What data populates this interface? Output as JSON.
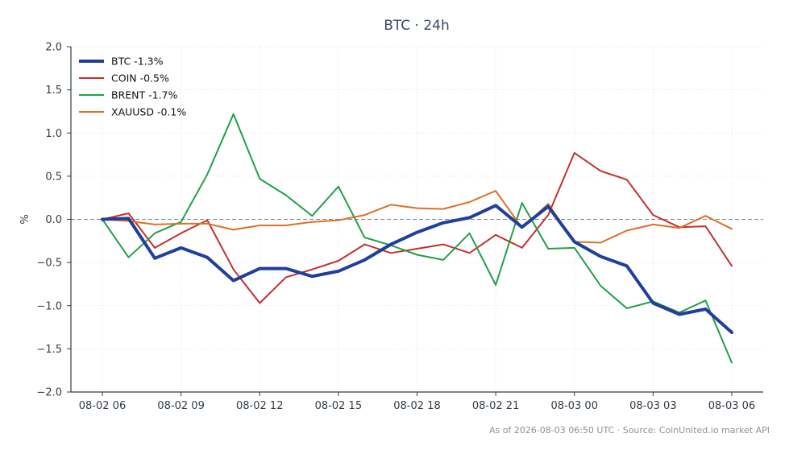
{
  "chart_data": {
    "type": "line",
    "title": "BTC · 24h",
    "xlabel": "",
    "ylabel": "%",
    "ylim": [
      -2.0,
      2.0
    ],
    "yticks": [
      "2.0",
      "1.5",
      "1.0",
      "0.5",
      "0.0",
      "−0.5",
      "−1.0",
      "−1.5",
      "−2.0"
    ],
    "ytick_values": [
      2.0,
      1.5,
      1.0,
      0.5,
      0.0,
      -0.5,
      -1.0,
      -1.5,
      -2.0
    ],
    "xticks": [
      "08-02 06",
      "08-02 09",
      "08-02 12",
      "08-02 15",
      "08-02 18",
      "08-02 21",
      "08-03 00",
      "08-03 03",
      "08-03 06"
    ],
    "xtick_positions": [
      0,
      3,
      6,
      9,
      12,
      15,
      18,
      21,
      24
    ],
    "x_hours": [
      0,
      1,
      2,
      3,
      4,
      5,
      6,
      7,
      8,
      9,
      10,
      11,
      12,
      13,
      14,
      15,
      16,
      17,
      18,
      19,
      20,
      21,
      22,
      23,
      24
    ],
    "baseline": 0.0,
    "grid": true,
    "legend_position": "top-left",
    "series": [
      {
        "name": "BTC -1.3%",
        "color": "#1f3f9b",
        "width": 4,
        "values": [
          0.0,
          0.01,
          -0.45,
          -0.33,
          -0.44,
          -0.71,
          -0.57,
          -0.57,
          -0.66,
          -0.6,
          -0.47,
          -0.29,
          -0.15,
          -0.04,
          0.02,
          0.16,
          -0.09,
          0.15,
          -0.26,
          -0.43,
          -0.54,
          -0.97,
          -1.1,
          -1.04,
          -1.31
        ]
      },
      {
        "name": "COIN -0.5%",
        "color": "#c62f2f",
        "width": 2,
        "values": [
          0.0,
          0.07,
          -0.33,
          -0.16,
          -0.01,
          -0.58,
          -0.97,
          -0.67,
          -0.58,
          -0.48,
          -0.29,
          -0.39,
          -0.34,
          -0.29,
          -0.39,
          -0.18,
          -0.33,
          0.05,
          0.77,
          0.56,
          0.46,
          0.05,
          -0.09,
          -0.08,
          -0.54
        ]
      },
      {
        "name": "BRENT -1.7%",
        "color": "#22a04a",
        "width": 2,
        "values": [
          0.0,
          -0.44,
          -0.16,
          -0.03,
          0.52,
          1.22,
          0.47,
          0.28,
          0.04,
          0.38,
          -0.21,
          -0.3,
          -0.41,
          -0.47,
          -0.16,
          -0.76,
          0.19,
          -0.34,
          -0.33,
          -0.77,
          -1.03,
          -0.95,
          -1.08,
          -0.94,
          -1.66
        ]
      },
      {
        "name": "XAUUSD -0.1%",
        "color": "#e06e25",
        "width": 2,
        "values": [
          0.0,
          -0.02,
          -0.06,
          -0.05,
          -0.05,
          -0.12,
          -0.07,
          -0.07,
          -0.03,
          -0.01,
          0.05,
          0.17,
          0.13,
          0.12,
          0.2,
          0.33,
          -0.1,
          0.18,
          -0.26,
          -0.27,
          -0.13,
          -0.06,
          -0.1,
          0.04,
          -0.11
        ]
      }
    ]
  },
  "footer": "As of 2026-08-03 06:50 UTC · Source: CoinUnited.io market API"
}
